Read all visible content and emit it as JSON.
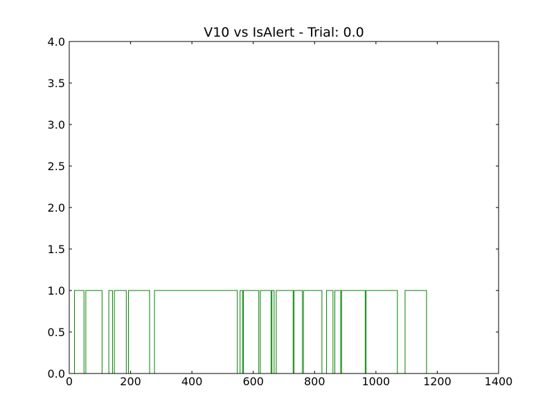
{
  "chart_data": {
    "type": "line",
    "title": "V10 vs IsAlert - Trial: 0.0",
    "xlabel": "",
    "ylabel": "",
    "xlim": [
      0,
      1400
    ],
    "ylim": [
      0,
      4.0
    ],
    "x_ticks": [
      "0",
      "200",
      "400",
      "600",
      "800",
      "1000",
      "1200",
      "1400"
    ],
    "y_ticks": [
      "0.0",
      "0.5",
      "1.0",
      "1.5",
      "2.0",
      "2.5",
      "3.0",
      "3.5",
      "4.0"
    ],
    "grid": false,
    "line_color": "#008000",
    "series": [
      {
        "step_points": [
          [
            0,
            0
          ],
          [
            17,
            0
          ],
          [
            17,
            1
          ],
          [
            48,
            1
          ],
          [
            48,
            0
          ],
          [
            54,
            0
          ],
          [
            54,
            1
          ],
          [
            107,
            1
          ],
          [
            107,
            0
          ],
          [
            129,
            0
          ],
          [
            129,
            1
          ],
          [
            141,
            1
          ],
          [
            141,
            0
          ],
          [
            147,
            0
          ],
          [
            147,
            1
          ],
          [
            186,
            1
          ],
          [
            186,
            0
          ],
          [
            193,
            0
          ],
          [
            193,
            1
          ],
          [
            262,
            1
          ],
          [
            262,
            0
          ],
          [
            278,
            0
          ],
          [
            278,
            1
          ],
          [
            548,
            1
          ],
          [
            548,
            0
          ],
          [
            557,
            0
          ],
          [
            557,
            1
          ],
          [
            565,
            1
          ],
          [
            565,
            0
          ],
          [
            568,
            0
          ],
          [
            568,
            1
          ],
          [
            618,
            1
          ],
          [
            618,
            0
          ],
          [
            623,
            0
          ],
          [
            623,
            1
          ],
          [
            658,
            1
          ],
          [
            658,
            0
          ],
          [
            661,
            0
          ],
          [
            661,
            1
          ],
          [
            668,
            1
          ],
          [
            668,
            0
          ],
          [
            675,
            0
          ],
          [
            675,
            1
          ],
          [
            730,
            1
          ],
          [
            730,
            0
          ],
          [
            733,
            0
          ],
          [
            733,
            1
          ],
          [
            760,
            1
          ],
          [
            760,
            0
          ],
          [
            764,
            0
          ],
          [
            764,
            1
          ],
          [
            824,
            1
          ],
          [
            824,
            0
          ],
          [
            839,
            0
          ],
          [
            839,
            1
          ],
          [
            860,
            1
          ],
          [
            860,
            0
          ],
          [
            866,
            0
          ],
          [
            866,
            1
          ],
          [
            885,
            1
          ],
          [
            885,
            0
          ],
          [
            888,
            0
          ],
          [
            888,
            1
          ],
          [
            965,
            1
          ],
          [
            965,
            0
          ],
          [
            968,
            0
          ],
          [
            968,
            1
          ],
          [
            1070,
            1
          ],
          [
            1070,
            0
          ],
          [
            1095,
            0
          ],
          [
            1095,
            1
          ],
          [
            1165,
            1
          ],
          [
            1165,
            0
          ],
          [
            1200,
            0
          ]
        ]
      }
    ]
  }
}
